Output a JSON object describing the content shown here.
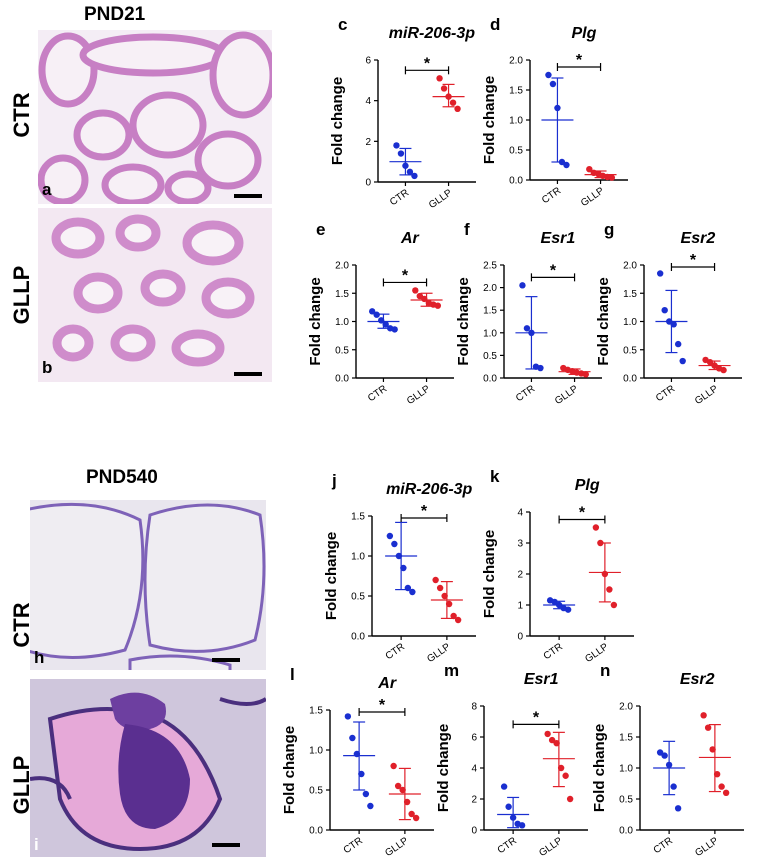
{
  "sections": [
    {
      "title": "PND21",
      "rows": [
        {
          "label": "CTR",
          "letter": "a"
        },
        {
          "label": "GLLP",
          "letter": "b"
        }
      ]
    },
    {
      "title": "PND540",
      "rows": [
        {
          "label": "CTR",
          "letter": "h"
        },
        {
          "label": "GLLP",
          "letter": "i"
        }
      ]
    }
  ],
  "colors": {
    "ctr": "#1a2fd0",
    "gllp": "#e0202a",
    "tissue": "#d79bd2",
    "lumen": "#f6eef5"
  },
  "chart_data": [
    {
      "letter": "c",
      "title": "miR-206-3p",
      "type": "scatter",
      "ylabel": "Fold change",
      "ylim": [
        0,
        6
      ],
      "yticks": [
        "0",
        "2",
        "4",
        "6"
      ],
      "categories": [
        "CTR",
        "GLLP"
      ],
      "significant": true,
      "sig_label": "*",
      "series": [
        {
          "values": [
            1.8,
            1.4,
            0.8,
            0.5,
            0.3
          ],
          "mean": 1.0,
          "sd_low": 0.35,
          "sd_high": 1.65
        },
        {
          "values": [
            5.1,
            4.6,
            4.2,
            3.9,
            3.6
          ],
          "mean": 4.2,
          "sd_low": 3.7,
          "sd_high": 4.8
        }
      ]
    },
    {
      "letter": "d",
      "title": "Plg",
      "type": "scatter",
      "ylabel": "Fold change",
      "ylim": [
        0,
        2.0
      ],
      "yticks": [
        "0.0",
        "0.5",
        "1.0",
        "1.5",
        "2.0"
      ],
      "categories": [
        "CTR",
        "GLLP"
      ],
      "significant": true,
      "sig_label": "*",
      "series": [
        {
          "values": [
            1.75,
            1.6,
            1.2,
            0.3,
            0.25
          ],
          "mean": 1.0,
          "sd_low": 0.3,
          "sd_high": 1.7
        },
        {
          "values": [
            0.18,
            0.12,
            0.1,
            0.07,
            0.05,
            0.04
          ],
          "mean": 0.09,
          "sd_low": 0.04,
          "sd_high": 0.15
        }
      ]
    },
    {
      "letter": "e",
      "title": "Ar",
      "type": "scatter",
      "ylabel": "Fold change",
      "ylim": [
        0,
        2.0
      ],
      "yticks": [
        "0.0",
        "0.5",
        "1.0",
        "1.5",
        "2.0"
      ],
      "categories": [
        "CTR",
        "GLLP"
      ],
      "significant": true,
      "sig_label": "*",
      "series": [
        {
          "values": [
            1.18,
            1.12,
            1.02,
            0.95,
            0.88,
            0.86
          ],
          "mean": 1.0,
          "sd_low": 0.88,
          "sd_high": 1.13
        },
        {
          "values": [
            1.55,
            1.45,
            1.4,
            1.33,
            1.3,
            1.28
          ],
          "mean": 1.38,
          "sd_low": 1.27,
          "sd_high": 1.5
        }
      ]
    },
    {
      "letter": "f",
      "title": "Esr1",
      "type": "scatter",
      "ylabel": "Fold change",
      "ylim": [
        0,
        2.5
      ],
      "yticks": [
        "0.0",
        "0.5",
        "1.0",
        "1.5",
        "2.0",
        "2.5"
      ],
      "categories": [
        "CTR",
        "GLLP"
      ],
      "significant": true,
      "sig_label": "*",
      "series": [
        {
          "values": [
            2.05,
            1.1,
            1.0,
            0.25,
            0.22
          ],
          "mean": 1.0,
          "sd_low": 0.2,
          "sd_high": 1.8
        },
        {
          "values": [
            0.22,
            0.18,
            0.15,
            0.12,
            0.1,
            0.08
          ],
          "mean": 0.14,
          "sd_low": 0.08,
          "sd_high": 0.2
        }
      ]
    },
    {
      "letter": "g",
      "title": "Esr2",
      "type": "scatter",
      "ylabel": "Fold change",
      "ylim": [
        0,
        2.0
      ],
      "yticks": [
        "0.0",
        "0.5",
        "1.0",
        "1.5",
        "2.0"
      ],
      "categories": [
        "CTR",
        "GLLP"
      ],
      "significant": true,
      "sig_label": "*",
      "series": [
        {
          "values": [
            1.85,
            1.2,
            1.0,
            0.95,
            0.6,
            0.3
          ],
          "mean": 1.0,
          "sd_low": 0.45,
          "sd_high": 1.55
        },
        {
          "values": [
            0.32,
            0.28,
            0.22,
            0.17,
            0.14
          ],
          "mean": 0.22,
          "sd_low": 0.15,
          "sd_high": 0.3
        }
      ]
    },
    {
      "letter": "j",
      "title": "miR-206-3p",
      "type": "scatter",
      "ylabel": "Fold change",
      "ylim": [
        0,
        1.5
      ],
      "yticks": [
        "0.0",
        "0.5",
        "1.0",
        "1.5"
      ],
      "categories": [
        "CTR",
        "GLLP"
      ],
      "significant": true,
      "sig_label": "*",
      "series": [
        {
          "values": [
            1.25,
            1.15,
            1.0,
            0.85,
            0.6,
            0.55
          ],
          "mean": 1.0,
          "sd_low": 0.58,
          "sd_high": 1.42
        },
        {
          "values": [
            0.7,
            0.6,
            0.5,
            0.4,
            0.25,
            0.2
          ],
          "mean": 0.45,
          "sd_low": 0.22,
          "sd_high": 0.68
        }
      ]
    },
    {
      "letter": "k",
      "title": "Plg",
      "type": "scatter",
      "ylabel": "Fold change",
      "ylim": [
        0,
        4
      ],
      "yticks": [
        "0",
        "1",
        "2",
        "3",
        "4"
      ],
      "categories": [
        "CTR",
        "GLLP"
      ],
      "significant": true,
      "sig_label": "*",
      "series": [
        {
          "values": [
            1.15,
            1.1,
            1.0,
            0.9,
            0.85
          ],
          "mean": 1.0,
          "sd_low": 0.88,
          "sd_high": 1.12
        },
        {
          "values": [
            3.5,
            3.0,
            2.0,
            1.5,
            1.0
          ],
          "mean": 2.05,
          "sd_low": 1.1,
          "sd_high": 3.0
        }
      ]
    },
    {
      "letter": "l",
      "title": "Ar",
      "type": "scatter",
      "ylabel": "Fold change",
      "ylim": [
        0,
        1.5
      ],
      "yticks": [
        "0.0",
        "0.5",
        "1.0",
        "1.5"
      ],
      "categories": [
        "CTR",
        "GLLP"
      ],
      "significant": true,
      "sig_label": "*",
      "series": [
        {
          "values": [
            1.42,
            1.15,
            0.95,
            0.7,
            0.45,
            0.3
          ],
          "mean": 0.93,
          "sd_low": 0.5,
          "sd_high": 1.35
        },
        {
          "values": [
            0.8,
            0.55,
            0.5,
            0.35,
            0.2,
            0.15
          ],
          "mean": 0.45,
          "sd_low": 0.13,
          "sd_high": 0.77
        }
      ]
    },
    {
      "letter": "m",
      "title": "Esr1",
      "type": "scatter",
      "ylabel": "Fold change",
      "ylim": [
        0,
        8
      ],
      "yticks": [
        "0",
        "2",
        "4",
        "6",
        "8"
      ],
      "categories": [
        "CTR",
        "GLLP"
      ],
      "significant": true,
      "sig_label": "*",
      "series": [
        {
          "values": [
            2.8,
            1.5,
            0.8,
            0.4,
            0.3
          ],
          "mean": 1.0,
          "sd_low": 0.15,
          "sd_high": 2.1
        },
        {
          "values": [
            6.2,
            5.8,
            5.6,
            4.0,
            3.5,
            2.0
          ],
          "mean": 4.6,
          "sd_low": 2.8,
          "sd_high": 6.3
        }
      ]
    },
    {
      "letter": "n",
      "title": "Esr2",
      "type": "scatter",
      "ylabel": "Fold change",
      "ylim": [
        0,
        2.0
      ],
      "yticks": [
        "0.0",
        "0.5",
        "1.0",
        "1.5",
        "2.0"
      ],
      "categories": [
        "CTR",
        "GLLP"
      ],
      "significant": false,
      "sig_label": "",
      "series": [
        {
          "values": [
            1.25,
            1.2,
            1.05,
            0.7,
            0.35
          ],
          "mean": 1.0,
          "sd_low": 0.57,
          "sd_high": 1.43
        },
        {
          "values": [
            1.85,
            1.65,
            1.3,
            0.9,
            0.7,
            0.6
          ],
          "mean": 1.17,
          "sd_low": 0.62,
          "sd_high": 1.7
        }
      ]
    }
  ]
}
